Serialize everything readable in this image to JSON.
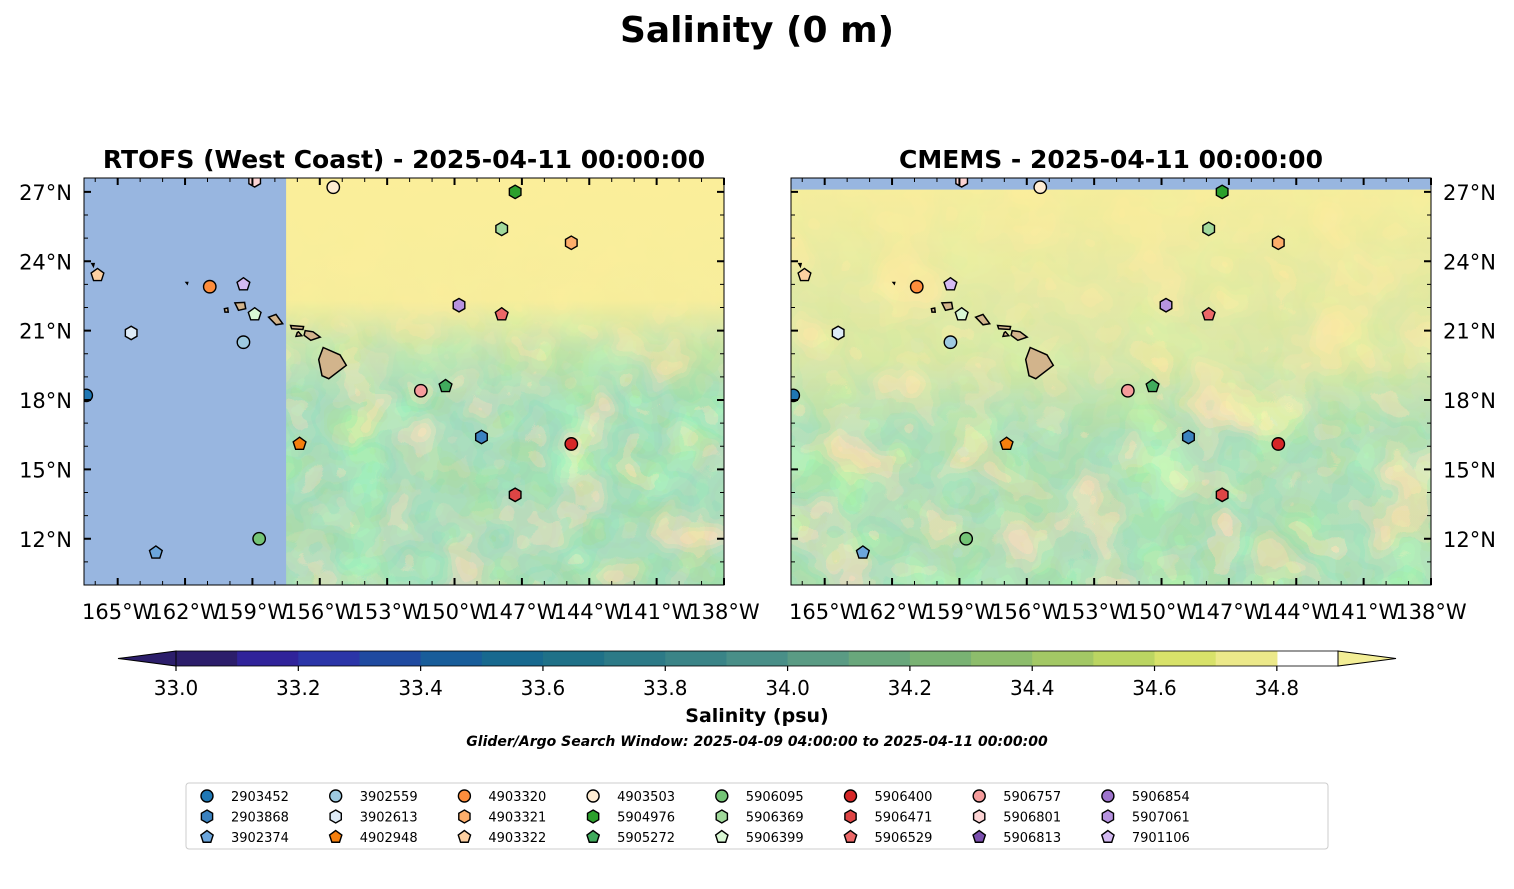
{
  "figure": {
    "title": "Salinity (0 m)",
    "colorbar_label": "Salinity (psu)",
    "search_window": "Glider/Argo Search Window: 2025-04-09 04:00:00 to 2025-04-11 00:00:00"
  },
  "colors": {
    "land": "#d2b48c",
    "masked_water": "#98b6e0",
    "colormap": [
      "#2c1e6b",
      "#30239a",
      "#2b35a8",
      "#1f4aa0",
      "#185d9a",
      "#17698f",
      "#1f7188",
      "#2c7a87",
      "#3a8487",
      "#498f88",
      "#5a9b84",
      "#69a77c",
      "#79b273",
      "#8dbd6c",
      "#a3c865",
      "#bbd562",
      "#d8e26a",
      "#ece98a"
    ],
    "colormap_under": "#2c1e6b",
    "colormap_over": "#f3ee96"
  },
  "chart_data": [
    {
      "type": "heatmap",
      "title": "RTOFS (West Coast) - 2025-04-11 00:00:00",
      "xlim": [
        -166.5,
        -138
      ],
      "ylim": [
        10,
        27.6
      ],
      "x_ticks": [
        "165°W",
        "162°W",
        "159°W",
        "156°W",
        "153°W",
        "150°W",
        "147°W",
        "144°W",
        "141°W",
        "138°W"
      ],
      "y_ticks": [
        "12°N",
        "15°N",
        "18°N",
        "21°N",
        "24°N",
        "27°N"
      ],
      "y_tick_side": "left",
      "masked_west_of_lon": -157.5,
      "surface_salinity_range_psu": [
        34.2,
        34.9
      ],
      "float_positions": [
        {
          "id": "2903452",
          "lon": -166.4,
          "lat": 18.2
        },
        {
          "id": "2903868",
          "lon": -148.8,
          "lat": 16.4
        },
        {
          "id": "3902374",
          "lon": -163.3,
          "lat": 11.4
        },
        {
          "id": "3902559",
          "lon": -159.4,
          "lat": 20.5
        },
        {
          "id": "3902613",
          "lon": -164.4,
          "lat": 20.9
        },
        {
          "id": "4902948",
          "lon": -156.9,
          "lat": 16.1
        },
        {
          "id": "4903320",
          "lon": -160.9,
          "lat": 22.9
        },
        {
          "id": "4903321",
          "lon": -144.8,
          "lat": 24.8
        },
        {
          "id": "4903322",
          "lon": -165.9,
          "lat": 23.4
        },
        {
          "id": "4903503",
          "lon": -155.4,
          "lat": 27.2
        },
        {
          "id": "5904976",
          "lon": -147.3,
          "lat": 27.0
        },
        {
          "id": "5905272",
          "lon": -150.4,
          "lat": 18.6
        },
        {
          "id": "5906095",
          "lon": -158.7,
          "lat": 12.0
        },
        {
          "id": "5906369",
          "lon": -147.9,
          "lat": 25.4
        },
        {
          "id": "5906399",
          "lon": -158.9,
          "lat": 21.7
        },
        {
          "id": "5906400",
          "lon": -144.8,
          "lat": 16.1
        },
        {
          "id": "5906471",
          "lon": -147.3,
          "lat": 13.9
        },
        {
          "id": "5906529",
          "lon": -147.9,
          "lat": 21.7
        },
        {
          "id": "5906757",
          "lon": -151.5,
          "lat": 18.4
        },
        {
          "id": "5906801",
          "lon": -158.9,
          "lat": 27.5
        },
        {
          "id": "5907061",
          "lon": -149.8,
          "lat": 22.1
        },
        {
          "id": "7901106",
          "lon": -159.4,
          "lat": 23.0
        }
      ]
    },
    {
      "type": "heatmap",
      "title": "CMEMS - 2025-04-11 00:00:00",
      "xlim": [
        -166.5,
        -138
      ],
      "ylim": [
        10,
        27.6
      ],
      "x_ticks": [
        "165°W",
        "162°W",
        "159°W",
        "156°W",
        "153°W",
        "150°W",
        "147°W",
        "144°W",
        "141°W",
        "138°W"
      ],
      "y_ticks": [
        "12°N",
        "15°N",
        "18°N",
        "21°N",
        "24°N",
        "27°N"
      ],
      "y_tick_side": "right",
      "masked_north_of_lat": 27.1,
      "surface_salinity_range_psu": [
        34.2,
        34.9
      ],
      "float_positions": [
        {
          "id": "2903452",
          "lon": -166.4,
          "lat": 18.2
        },
        {
          "id": "2903868",
          "lon": -148.8,
          "lat": 16.4
        },
        {
          "id": "3902374",
          "lon": -163.3,
          "lat": 11.4
        },
        {
          "id": "3902559",
          "lon": -159.4,
          "lat": 20.5
        },
        {
          "id": "3902613",
          "lon": -164.4,
          "lat": 20.9
        },
        {
          "id": "4902948",
          "lon": -156.9,
          "lat": 16.1
        },
        {
          "id": "4903320",
          "lon": -160.9,
          "lat": 22.9
        },
        {
          "id": "4903321",
          "lon": -144.8,
          "lat": 24.8
        },
        {
          "id": "4903322",
          "lon": -165.9,
          "lat": 23.4
        },
        {
          "id": "4903503",
          "lon": -155.4,
          "lat": 27.2
        },
        {
          "id": "5904976",
          "lon": -147.3,
          "lat": 27.0
        },
        {
          "id": "5905272",
          "lon": -150.4,
          "lat": 18.6
        },
        {
          "id": "5906095",
          "lon": -158.7,
          "lat": 12.0
        },
        {
          "id": "5906369",
          "lon": -147.9,
          "lat": 25.4
        },
        {
          "id": "5906399",
          "lon": -158.9,
          "lat": 21.7
        },
        {
          "id": "5906400",
          "lon": -144.8,
          "lat": 16.1
        },
        {
          "id": "5906471",
          "lon": -147.3,
          "lat": 13.9
        },
        {
          "id": "5906529",
          "lon": -147.9,
          "lat": 21.7
        },
        {
          "id": "5906757",
          "lon": -151.5,
          "lat": 18.4
        },
        {
          "id": "5906801",
          "lon": -158.9,
          "lat": 27.5
        },
        {
          "id": "5907061",
          "lon": -149.8,
          "lat": 22.1
        },
        {
          "id": "7901106",
          "lon": -159.4,
          "lat": 23.0
        }
      ]
    },
    {
      "type": "colorbar",
      "label": "Salinity (psu)",
      "vmin": 32.9,
      "vmax": 34.9,
      "step": 0.1,
      "extend": "both",
      "tick_values": [
        33.0,
        33.2,
        33.4,
        33.6,
        33.8,
        34.0,
        34.2,
        34.4,
        34.6,
        34.8
      ],
      "tick_labels": [
        "33.0",
        "33.2",
        "33.4",
        "33.6",
        "33.8",
        "34.0",
        "34.2",
        "34.4",
        "34.6",
        "34.8"
      ]
    }
  ],
  "legend": {
    "placement": "bottom",
    "columns": 9,
    "entries": [
      {
        "id": "2903452",
        "marker": "circle",
        "color": "#1f77b4"
      },
      {
        "id": "2903868",
        "marker": "hexagon",
        "color": "#3b82c0"
      },
      {
        "id": "3902374",
        "marker": "pentagon",
        "color": "#6ca6dc"
      },
      {
        "id": "3902559",
        "marker": "circle",
        "color": "#9ecae1"
      },
      {
        "id": "3902613",
        "marker": "hexagon",
        "color": "#deebf7"
      },
      {
        "id": "4902948",
        "marker": "pentagon",
        "color": "#f57f0e"
      },
      {
        "id": "4903320",
        "marker": "circle",
        "color": "#fd8d3c"
      },
      {
        "id": "4903321",
        "marker": "hexagon",
        "color": "#fdae6b"
      },
      {
        "id": "4903322",
        "marker": "pentagon",
        "color": "#fdd0a2"
      },
      {
        "id": "4903503",
        "marker": "circle",
        "color": "#feecd2"
      },
      {
        "id": "5904976",
        "marker": "hexagon",
        "color": "#2ca02c"
      },
      {
        "id": "5905272",
        "marker": "pentagon",
        "color": "#41ab5d"
      },
      {
        "id": "5906095",
        "marker": "circle",
        "color": "#74c476"
      },
      {
        "id": "5906369",
        "marker": "hexagon",
        "color": "#a1d99b"
      },
      {
        "id": "5906399",
        "marker": "pentagon",
        "color": "#d9f7d4"
      },
      {
        "id": "5906400",
        "marker": "circle",
        "color": "#d62728"
      },
      {
        "id": "5906471",
        "marker": "hexagon",
        "color": "#de4545"
      },
      {
        "id": "5906529",
        "marker": "pentagon",
        "color": "#ec6868"
      },
      {
        "id": "5906757",
        "marker": "circle",
        "color": "#f59c9c"
      },
      {
        "id": "5906801",
        "marker": "hexagon",
        "color": "#fcd4d4"
      },
      {
        "id": "5906813",
        "marker": "pentagon",
        "color": "#7b4fae"
      },
      {
        "id": "5906854",
        "marker": "circle",
        "color": "#9e74cc"
      },
      {
        "id": "5907061",
        "marker": "hexagon",
        "color": "#b793e0"
      },
      {
        "id": "7901106",
        "marker": "pentagon",
        "color": "#d4baf2"
      }
    ]
  }
}
